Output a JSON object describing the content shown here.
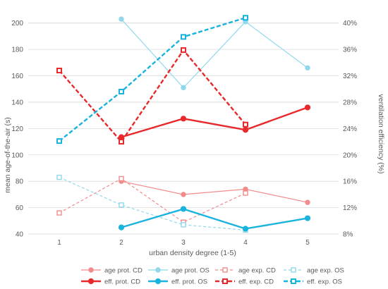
{
  "chart_data": {
    "type": "line",
    "title": "",
    "xlabel": "urban density degree (1-5)",
    "ylabel": "mean age-of-the-air (s)",
    "y2label": "ventilation efficiency (%)",
    "x_ticks": [
      1,
      2,
      3,
      4,
      5
    ],
    "xlim": [
      0.5,
      5.5
    ],
    "ylim": [
      40,
      210
    ],
    "y_ticks": [
      40,
      60,
      80,
      100,
      120,
      140,
      160,
      180,
      200
    ],
    "y2lim": [
      8,
      42
    ],
    "y2_ticks": [
      "8%",
      "12%",
      "16%",
      "20%",
      "24%",
      "28%",
      "32%",
      "36%",
      "40%"
    ],
    "y2_tick_values": [
      8,
      12,
      16,
      20,
      24,
      28,
      32,
      36,
      40
    ],
    "grid": "horizontal",
    "legend_position": "bottom",
    "colors": {
      "cd_light": "#f28b8b",
      "cd": "#e8282a",
      "os_light": "#8fd8ec",
      "os": "#19b3de"
    },
    "series": [
      {
        "name": "age prot. CD",
        "axis": "left",
        "color": "#f28b8b",
        "width": 1.2,
        "dash": "",
        "marker": "circle",
        "x": [
          2,
          3,
          4,
          5
        ],
        "y": [
          80,
          70,
          74,
          64
        ]
      },
      {
        "name": "age prot. OS",
        "axis": "left",
        "color": "#8fd8ec",
        "width": 1.2,
        "dash": "",
        "marker": "circle",
        "x": [
          2,
          3,
          4,
          5
        ],
        "y": [
          203,
          151,
          201,
          166
        ]
      },
      {
        "name": "age exp. CD",
        "axis": "left",
        "color": "#f28b8b",
        "width": 1.2,
        "dash": "4,3",
        "marker": "square",
        "x": [
          1,
          2,
          3,
          4
        ],
        "y": [
          56,
          82,
          49,
          71
        ]
      },
      {
        "name": "age exp. OS",
        "axis": "left",
        "color": "#8fd8ec",
        "width": 1.2,
        "dash": "4,3",
        "marker": "square",
        "x": [
          1,
          2,
          3,
          4
        ],
        "y": [
          83,
          62,
          47,
          43
        ]
      },
      {
        "name": "eff. prot. CD",
        "axis": "right",
        "color": "#e8282a",
        "width": 2.4,
        "dash": "",
        "marker": "circle",
        "x": [
          2,
          3,
          4,
          5
        ],
        "y": [
          22.7,
          25.5,
          23.8,
          27.2
        ]
      },
      {
        "name": "eff. prot. OS",
        "axis": "right",
        "color": "#19b3de",
        "width": 2.4,
        "dash": "",
        "marker": "circle",
        "x": [
          2,
          3,
          4,
          5
        ],
        "y": [
          9.0,
          11.8,
          8.8,
          10.4
        ]
      },
      {
        "name": "eff. exp. CD",
        "axis": "right",
        "color": "#e8282a",
        "width": 2.4,
        "dash": "6,3",
        "marker": "square",
        "x": [
          1,
          2,
          3,
          4
        ],
        "y": [
          32.8,
          22.0,
          35.9,
          24.6
        ]
      },
      {
        "name": "eff. exp. OS",
        "axis": "right",
        "color": "#19b3de",
        "width": 2.4,
        "dash": "6,3",
        "marker": "square",
        "x": [
          1,
          2,
          3,
          4
        ],
        "y": [
          22.1,
          29.6,
          37.9,
          40.8
        ]
      }
    ]
  }
}
